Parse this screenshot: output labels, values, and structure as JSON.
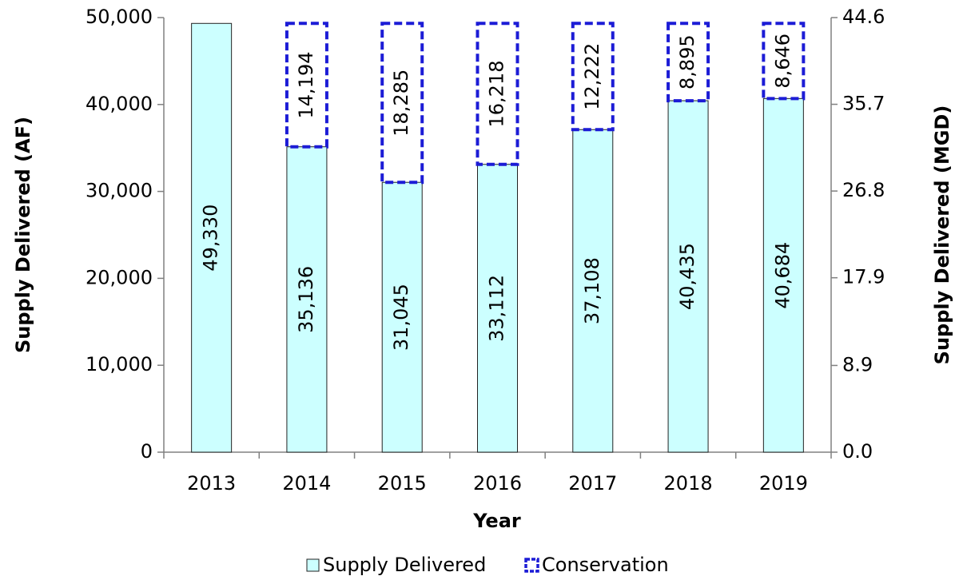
{
  "chart_data": {
    "type": "stacked_bar",
    "categories": [
      "2013",
      "2014",
      "2015",
      "2016",
      "2017",
      "2018",
      "2019"
    ],
    "series": [
      {
        "name": "Supply Delivered",
        "color": "#ccffff",
        "values": [
          49330,
          35136,
          31045,
          33112,
          37108,
          40435,
          40684
        ],
        "value_labels": [
          "49,330",
          "35,136",
          "31,045",
          "33,112",
          "37,108",
          "40,435",
          "40,684"
        ]
      },
      {
        "name": "Conservation",
        "color": "#1c1cd6",
        "values": [
          null,
          14194,
          18285,
          16218,
          12222,
          8895,
          8646
        ],
        "value_labels": [
          null,
          "14,194",
          "18,285",
          "16,218",
          "12,222",
          "8,895",
          "8,646"
        ]
      }
    ],
    "xlabel": "Year",
    "ylabel": "Supply Delivered (AF)",
    "y2label": "Supply Delivered (MGD)",
    "ylim": [
      0,
      50000
    ],
    "yticks": [
      0,
      {
        "value": 10000,
        "label": "10,000"
      },
      {
        "value": 20000,
        "label": "20,000"
      },
      {
        "value": 30000,
        "label": "30,000"
      },
      {
        "value": 40000,
        "label": "40,000"
      },
      {
        "value": 50000,
        "label": "50,000"
      }
    ],
    "y2lim": [
      0,
      44.6
    ],
    "y2ticks": [
      {
        "value": 0,
        "label": "0.0"
      },
      8.9,
      17.9,
      26.8,
      35.7,
      44.6
    ],
    "legend": "bottom"
  }
}
